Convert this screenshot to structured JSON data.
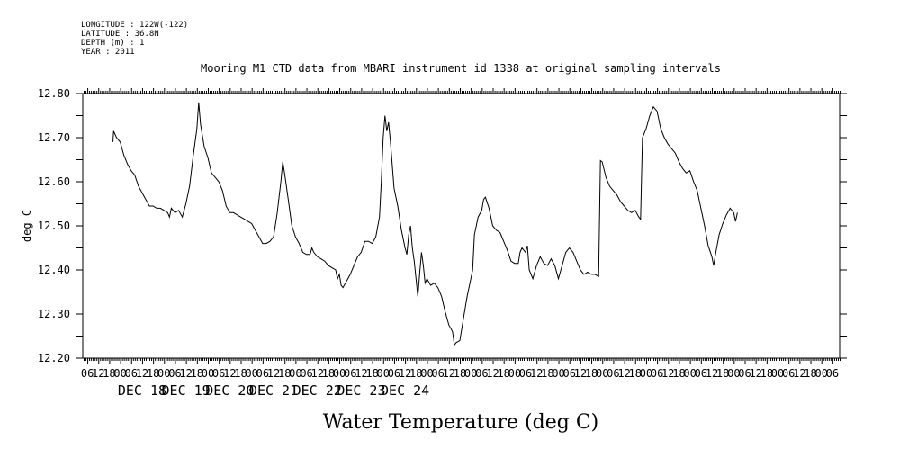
{
  "metadata": {
    "longitude": "LONGITUDE : 122W(-122)",
    "latitude": "LATITUDE : 36.8N",
    "depth": "DEPTH (m) : 1",
    "year": "YEAR : 2011"
  },
  "chart_data": {
    "type": "line",
    "title": "Mooring M1 CTD data from MBARI instrument id 1338 at original sampling intervals",
    "ylabel": "deg C",
    "xlabel": "Water Temperature (deg C)",
    "ylim": [
      12.2,
      12.8
    ],
    "xlim": [
      -20.5,
      394
    ],
    "y_ticks": [
      "12.80",
      "12.70",
      "12.60",
      "12.50",
      "12.40",
      "12.30",
      "12.20"
    ],
    "x_hour_labels": [
      "00",
      "06",
      "12",
      "18"
    ],
    "x_day_labels": [
      "DEC 18",
      "DEC 19",
      "DEC 20",
      "DEC 21",
      "DEC 22",
      "DEC 23",
      "DEC 24"
    ],
    "x_day_start_hours": [
      0,
      24,
      48,
      72,
      96,
      120,
      144
    ],
    "x_units": "hours from 2011-12-18 00:00",
    "grid": false,
    "series": [
      {
        "points": [
          [
            -4,
            12.69
          ],
          [
            -3.6,
            12.715
          ],
          [
            -2,
            12.7
          ],
          [
            0,
            12.69
          ],
          [
            2,
            12.66
          ],
          [
            4,
            12.64
          ],
          [
            6,
            12.625
          ],
          [
            8,
            12.615
          ],
          [
            10,
            12.59
          ],
          [
            12,
            12.575
          ],
          [
            14,
            12.56
          ],
          [
            16,
            12.545
          ],
          [
            18,
            12.545
          ],
          [
            20,
            12.54
          ],
          [
            22,
            12.54
          ],
          [
            24,
            12.535
          ],
          [
            26,
            12.53
          ],
          [
            27,
            12.52
          ],
          [
            28,
            12.54
          ],
          [
            30,
            12.53
          ],
          [
            32,
            12.535
          ],
          [
            34,
            12.52
          ],
          [
            36,
            12.55
          ],
          [
            38,
            12.59
          ],
          [
            40,
            12.66
          ],
          [
            41,
            12.69
          ],
          [
            42,
            12.72
          ],
          [
            43,
            12.78
          ],
          [
            44,
            12.73
          ],
          [
            46,
            12.68
          ],
          [
            48,
            12.655
          ],
          [
            50,
            12.62
          ],
          [
            52,
            12.61
          ],
          [
            54,
            12.6
          ],
          [
            56,
            12.58
          ],
          [
            58,
            12.545
          ],
          [
            60,
            12.53
          ],
          [
            62,
            12.53
          ],
          [
            64,
            12.525
          ],
          [
            66,
            12.52
          ],
          [
            68,
            12.515
          ],
          [
            70,
            12.51
          ],
          [
            72,
            12.505
          ],
          [
            74,
            12.49
          ],
          [
            76,
            12.475
          ],
          [
            78,
            12.46
          ],
          [
            80,
            12.46
          ],
          [
            82,
            12.465
          ],
          [
            84,
            12.475
          ],
          [
            86,
            12.53
          ],
          [
            88,
            12.6
          ],
          [
            89,
            12.645
          ],
          [
            90,
            12.62
          ],
          [
            92,
            12.56
          ],
          [
            94,
            12.5
          ],
          [
            96,
            12.475
          ],
          [
            98,
            12.46
          ],
          [
            100,
            12.44
          ],
          [
            102,
            12.435
          ],
          [
            104,
            12.435
          ],
          [
            105,
            12.45
          ],
          [
            106,
            12.44
          ],
          [
            108,
            12.43
          ],
          [
            110,
            12.425
          ],
          [
            112,
            12.42
          ],
          [
            114,
            12.41
          ],
          [
            116,
            12.405
          ],
          [
            118,
            12.4
          ],
          [
            119,
            12.38
          ],
          [
            120,
            12.39
          ],
          [
            121,
            12.365
          ],
          [
            122,
            12.36
          ],
          [
            124,
            12.375
          ],
          [
            126,
            12.39
          ],
          [
            128,
            12.41
          ],
          [
            130,
            12.43
          ],
          [
            132,
            12.44
          ],
          [
            134,
            12.465
          ],
          [
            136,
            12.465
          ],
          [
            138,
            12.46
          ],
          [
            140,
            12.475
          ],
          [
            142,
            12.52
          ],
          [
            143,
            12.6
          ],
          [
            144,
            12.7
          ],
          [
            145,
            12.75
          ],
          [
            146,
            12.715
          ],
          [
            147,
            12.735
          ],
          [
            148,
            12.69
          ],
          [
            150,
            12.585
          ],
          [
            152,
            12.545
          ],
          [
            154,
            12.49
          ],
          [
            156,
            12.45
          ],
          [
            157,
            12.435
          ],
          [
            158,
            12.48
          ],
          [
            159,
            12.5
          ],
          [
            160,
            12.45
          ],
          [
            161,
            12.42
          ],
          [
            162,
            12.38
          ],
          [
            163,
            12.34
          ],
          [
            164,
            12.39
          ],
          [
            165,
            12.44
          ],
          [
            166,
            12.41
          ],
          [
            167,
            12.37
          ],
          [
            168,
            12.38
          ],
          [
            170,
            12.365
          ],
          [
            172,
            12.37
          ],
          [
            174,
            12.36
          ],
          [
            176,
            12.34
          ],
          [
            178,
            12.305
          ],
          [
            180,
            12.275
          ],
          [
            182,
            12.26
          ],
          [
            183,
            12.23
          ],
          [
            184,
            12.235
          ],
          [
            186,
            12.24
          ],
          [
            188,
            12.29
          ],
          [
            190,
            12.34
          ],
          [
            192,
            12.38
          ],
          [
            193,
            12.4
          ],
          [
            194,
            12.48
          ],
          [
            196,
            12.52
          ],
          [
            198,
            12.535
          ],
          [
            199,
            12.56
          ],
          [
            200,
            12.565
          ],
          [
            202,
            12.54
          ],
          [
            204,
            12.5
          ],
          [
            206,
            12.49
          ],
          [
            208,
            12.485
          ],
          [
            210,
            12.465
          ],
          [
            212,
            12.445
          ],
          [
            214,
            12.42
          ],
          [
            216,
            12.415
          ],
          [
            218,
            12.415
          ],
          [
            219,
            12.44
          ],
          [
            220,
            12.45
          ],
          [
            222,
            12.44
          ],
          [
            223,
            12.455
          ],
          [
            224,
            12.4
          ],
          [
            226,
            12.38
          ],
          [
            228,
            12.41
          ],
          [
            230,
            12.43
          ],
          [
            232,
            12.415
          ],
          [
            234,
            12.41
          ],
          [
            236,
            12.425
          ],
          [
            238,
            12.41
          ],
          [
            240,
            12.38
          ],
          [
            242,
            12.41
          ],
          [
            244,
            12.44
          ],
          [
            246,
            12.45
          ],
          [
            248,
            12.44
          ],
          [
            250,
            12.42
          ],
          [
            252,
            12.4
          ],
          [
            254,
            12.39
          ],
          [
            256,
            12.395
          ],
          [
            258,
            12.39
          ],
          [
            260,
            12.39
          ],
          [
            262,
            12.385
          ],
          [
            263,
            12.648
          ],
          [
            264,
            12.645
          ],
          [
            266,
            12.61
          ],
          [
            268,
            12.59
          ],
          [
            270,
            12.58
          ],
          [
            272,
            12.57
          ],
          [
            274,
            12.555
          ],
          [
            276,
            12.545
          ],
          [
            278,
            12.535
          ],
          [
            280,
            12.53
          ],
          [
            282,
            12.535
          ],
          [
            284,
            12.52
          ],
          [
            285,
            12.515
          ],
          [
            286,
            12.7
          ],
          [
            288,
            12.72
          ],
          [
            290,
            12.75
          ],
          [
            292,
            12.77
          ],
          [
            294,
            12.76
          ],
          [
            296,
            12.72
          ],
          [
            298,
            12.7
          ],
          [
            300,
            12.685
          ],
          [
            302,
            12.675
          ],
          [
            304,
            12.665
          ],
          [
            306,
            12.645
          ],
          [
            308,
            12.63
          ],
          [
            310,
            12.62
          ],
          [
            312,
            12.625
          ],
          [
            314,
            12.6
          ],
          [
            316,
            12.58
          ],
          [
            318,
            12.54
          ],
          [
            320,
            12.5
          ],
          [
            322,
            12.455
          ],
          [
            324,
            12.43
          ],
          [
            325,
            12.41
          ],
          [
            326,
            12.435
          ],
          [
            328,
            12.48
          ],
          [
            330,
            12.505
          ],
          [
            332,
            12.525
          ],
          [
            334,
            12.54
          ],
          [
            336,
            12.53
          ],
          [
            337,
            12.51
          ],
          [
            338,
            12.53
          ]
        ]
      }
    ]
  }
}
